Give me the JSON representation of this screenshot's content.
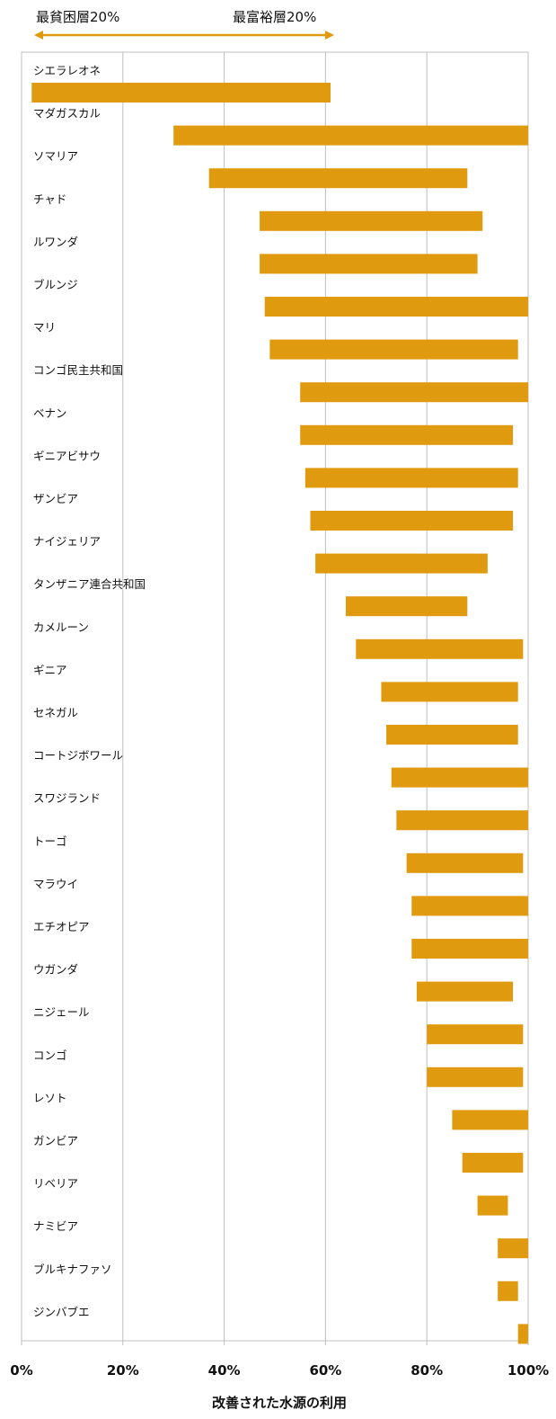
{
  "chart_data": {
    "type": "bar",
    "orientation": "horizontal-range",
    "xlabel": "改善された水源の利用",
    "xlim": [
      0,
      100
    ],
    "xticks": [
      0,
      20,
      40,
      60,
      80,
      100
    ],
    "xtick_labels": [
      "0%",
      "20%",
      "40%",
      "60%",
      "80%",
      "100%"
    ],
    "grid": "vertical",
    "legend": {
      "poorest_label": "最貧困層20%",
      "richest_label": "最富裕層20%",
      "placement": "top-left"
    },
    "colors": {
      "bar": "#E09A0F",
      "grid": "#BFBFBF",
      "frame": "#BFBFBF"
    },
    "categories": [
      "シエラレオネ",
      "マダガスカル",
      "ソマリア",
      "チャド",
      "ルワンダ",
      "ブルンジ",
      "マリ",
      "コンゴ民主共和国",
      "ベナン",
      "ギニアビサウ",
      "ザンビア",
      "ナイジェリア",
      "タンザニア連合共和国",
      "カメルーン",
      "ギニア",
      "セネガル",
      "コートジボワール",
      "スワジランド",
      "トーゴ",
      "マラウイ",
      "エチオピア",
      "ウガンダ",
      "ニジェール",
      "コンゴ",
      "レソト",
      "ガンビア",
      "リベリア",
      "ナミビア",
      "ブルキナファソ",
      "ジンバブエ"
    ],
    "series": [
      {
        "name": "最貧困層20%",
        "values": [
          2,
          30,
          37,
          47,
          47,
          48,
          49,
          55,
          55,
          56,
          57,
          58,
          64,
          66,
          71,
          72,
          73,
          74,
          76,
          77,
          77,
          78,
          80,
          80,
          85,
          87,
          90,
          94,
          94,
          98
        ]
      },
      {
        "name": "最富裕層20%",
        "values": [
          61,
          100,
          88,
          91,
          90,
          100,
          98,
          100,
          97,
          98,
          97,
          92,
          88,
          99,
          98,
          98,
          100,
          100,
          99,
          100,
          100,
          97,
          99,
          99,
          100,
          99,
          96,
          100,
          98,
          100
        ]
      }
    ]
  }
}
